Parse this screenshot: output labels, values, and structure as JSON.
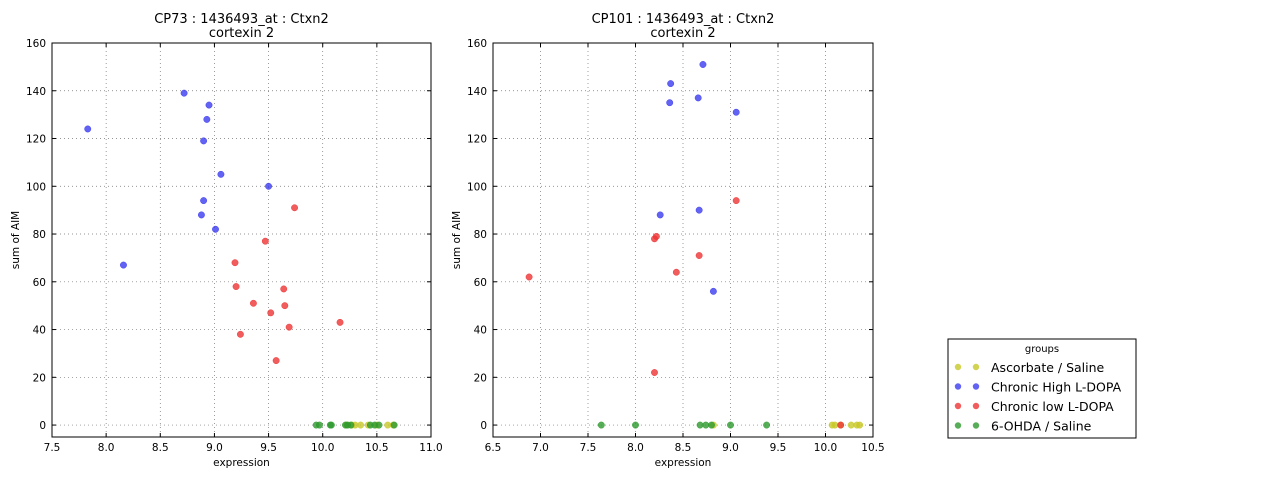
{
  "colors": {
    "Ascorbate / Saline": "#c8c828",
    "Chronic High L-DOPA": "#3b3bf0",
    "Chronic low L-DOPA": "#ee3333",
    "6-OHDA / Saline": "#2e9a2e"
  },
  "legend": {
    "title": "groups",
    "placement": "lower-right (outside plots)",
    "entries": [
      "Ascorbate / Saline",
      "Chronic High L-DOPA",
      "Chronic low L-DOPA",
      "6-OHDA / Saline"
    ]
  },
  "chart_data": [
    {
      "type": "scatter",
      "title": "CP73 : 1436493_at : Ctxn2",
      "subtitle": "cortexin 2",
      "xlabel": "expression",
      "ylabel": "sum of AIM",
      "xlim": [
        7.5,
        11.0
      ],
      "ylim": [
        -5,
        160
      ],
      "xticks": [
        "7.5",
        "8.0",
        "8.5",
        "9.0",
        "9.5",
        "10.0",
        "10.5",
        "11.0"
      ],
      "yticks": [
        "0",
        "20",
        "40",
        "60",
        "80",
        "100",
        "120",
        "140",
        "160"
      ],
      "grid": true,
      "series": [
        {
          "name": "Ascorbate / Saline",
          "points": [
            [
              10.3,
              0
            ],
            [
              10.35,
              0
            ],
            [
              10.42,
              0
            ],
            [
              10.5,
              0
            ],
            [
              10.6,
              0
            ],
            [
              10.65,
              0
            ],
            [
              10.22,
              0
            ],
            [
              10.27,
              0
            ]
          ]
        },
        {
          "name": "Chronic High L-DOPA",
          "points": [
            [
              7.83,
              124
            ],
            [
              8.16,
              67
            ],
            [
              8.72,
              139
            ],
            [
              8.95,
              134
            ],
            [
              8.93,
              128
            ],
            [
              8.9,
              119
            ],
            [
              9.06,
              105
            ],
            [
              9.5,
              100
            ],
            [
              8.9,
              94
            ],
            [
              8.88,
              88
            ],
            [
              9.01,
              82
            ]
          ]
        },
        {
          "name": "Chronic low L-DOPA",
          "points": [
            [
              9.74,
              91
            ],
            [
              9.47,
              77
            ],
            [
              9.19,
              68
            ],
            [
              9.2,
              58
            ],
            [
              9.64,
              57
            ],
            [
              9.36,
              51
            ],
            [
              9.65,
              50
            ],
            [
              9.52,
              47
            ],
            [
              9.69,
              41
            ],
            [
              10.16,
              43
            ],
            [
              9.24,
              38
            ],
            [
              9.57,
              27
            ]
          ]
        },
        {
          "name": "6-OHDA / Saline",
          "points": [
            [
              9.94,
              0
            ],
            [
              9.97,
              0
            ],
            [
              10.07,
              0
            ],
            [
              10.08,
              0
            ],
            [
              10.21,
              0
            ],
            [
              10.23,
              0
            ],
            [
              10.26,
              0
            ],
            [
              10.44,
              0
            ],
            [
              10.48,
              0
            ],
            [
              10.52,
              0
            ],
            [
              10.66,
              0
            ]
          ]
        }
      ]
    },
    {
      "type": "scatter",
      "title": "CP101 : 1436493_at : Ctxn2",
      "subtitle": "cortexin 2",
      "xlabel": "expression",
      "ylabel": "sum of AIM",
      "xlim": [
        6.5,
        10.5
      ],
      "ylim": [
        -5,
        160
      ],
      "xticks": [
        "6.5",
        "7.0",
        "7.5",
        "8.0",
        "8.5",
        "9.0",
        "9.5",
        "10.0",
        "10.5"
      ],
      "yticks": [
        "0",
        "20",
        "40",
        "60",
        "80",
        "100",
        "120",
        "140",
        "160"
      ],
      "grid": true,
      "series": [
        {
          "name": "Ascorbate / Saline",
          "points": [
            [
              10.07,
              0
            ],
            [
              10.1,
              0
            ],
            [
              10.16,
              0
            ],
            [
              10.27,
              0
            ],
            [
              10.33,
              0
            ],
            [
              10.36,
              0
            ],
            [
              8.82,
              0
            ]
          ]
        },
        {
          "name": "Chronic High L-DOPA",
          "points": [
            [
              8.37,
              143
            ],
            [
              8.71,
              151
            ],
            [
              8.36,
              135
            ],
            [
              8.66,
              137
            ],
            [
              9.06,
              131
            ],
            [
              8.26,
              88
            ],
            [
              8.67,
              90
            ],
            [
              8.82,
              56
            ]
          ]
        },
        {
          "name": "Chronic low L-DOPA",
          "points": [
            [
              9.06,
              94
            ],
            [
              8.2,
              78
            ],
            [
              8.22,
              79
            ],
            [
              8.67,
              71
            ],
            [
              8.43,
              64
            ],
            [
              6.88,
              62
            ],
            [
              8.2,
              22
            ],
            [
              10.16,
              0
            ]
          ]
        },
        {
          "name": "6-OHDA / Saline",
          "points": [
            [
              7.64,
              0
            ],
            [
              8.0,
              0
            ],
            [
              8.68,
              0
            ],
            [
              8.74,
              0
            ],
            [
              8.8,
              0
            ],
            [
              9.0,
              0
            ],
            [
              9.38,
              0
            ]
          ]
        }
      ]
    }
  ]
}
